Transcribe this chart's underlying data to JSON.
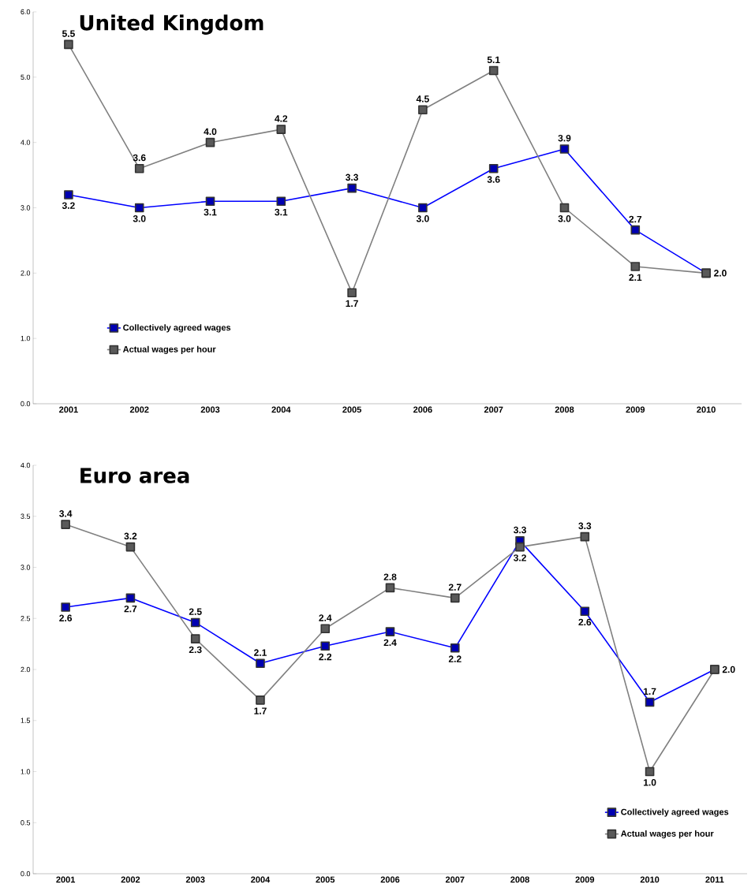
{
  "chart_data": [
    {
      "type": "line",
      "title": "United Kingdom",
      "categories": [
        "2001",
        "2002",
        "2003",
        "2004",
        "2005",
        "2006",
        "2007",
        "2008",
        "2009",
        "2010"
      ],
      "series": [
        {
          "name": "Collectively agreed wages",
          "color": "#0000ff",
          "values": [
            3.2,
            3.0,
            3.1,
            3.1,
            3.3,
            3.0,
            3.6,
            3.9,
            2.66,
            2.0
          ],
          "value_labels": [
            "3.2",
            "3.0",
            "3.1",
            "3.1",
            "3.3",
            "3.0",
            "3.6",
            "3.9",
            "2.7",
            null
          ]
        },
        {
          "name": "Actual wages per hour",
          "color": "#808080",
          "values": [
            5.5,
            3.6,
            4.0,
            4.2,
            1.7,
            4.5,
            5.1,
            3.0,
            2.1,
            2.0
          ],
          "value_labels": [
            "5.5",
            "3.6",
            "4.0",
            "4.2",
            "1.7",
            "4.5",
            "5.1",
            "3.0",
            "2.1",
            "2.0"
          ]
        }
      ],
      "ylim": [
        0,
        6
      ],
      "yticks": [
        {
          "value": 0,
          "label": "0.0"
        },
        {
          "value": 1,
          "label": "1.0"
        },
        {
          "value": 2,
          "label": "2.0"
        },
        {
          "value": 3,
          "label": "3.0"
        },
        {
          "value": 4,
          "label": "4.0"
        },
        {
          "value": 5,
          "label": "5.0"
        },
        {
          "value": 6,
          "label": "6.0"
        }
      ],
      "marker": "square",
      "legend": "bottom left"
    },
    {
      "type": "line",
      "title": "Euro area",
      "categories": [
        "2001",
        "2002",
        "2003",
        "2004",
        "2005",
        "2006",
        "2007",
        "2008",
        "2009",
        "2010",
        "2011"
      ],
      "series": [
        {
          "name": "Collectively agreed wages",
          "color": "#0000ff",
          "values": [
            2.61,
            2.7,
            2.46,
            2.06,
            2.23,
            2.37,
            2.21,
            3.26,
            2.57,
            1.68,
            2.0
          ],
          "value_labels": [
            "2.6",
            "2.7",
            "2.5",
            "2.1",
            "2.2",
            "2.4",
            "2.2",
            "3.3",
            "2.6",
            "1.7",
            null
          ]
        },
        {
          "name": "Actual wages per hour",
          "color": "#808080",
          "values": [
            3.42,
            3.2,
            2.3,
            1.7,
            2.4,
            2.8,
            2.7,
            3.2,
            3.3,
            1.0,
            2.0
          ],
          "value_labels": [
            "3.4",
            "3.2",
            "2.3",
            "1.7",
            "2.4",
            "2.8",
            "2.7",
            "3.2",
            "3.3",
            "1.0",
            "2.0"
          ]
        }
      ],
      "ylim": [
        0,
        4
      ],
      "yticks": [
        {
          "value": 0,
          "label": "0.0"
        },
        {
          "value": 0.5,
          "label": "0.5"
        },
        {
          "value": 1,
          "label": "1.0"
        },
        {
          "value": 1.5,
          "label": "1.5"
        },
        {
          "value": 2,
          "label": "2.0"
        },
        {
          "value": 2.5,
          "label": "2.5"
        },
        {
          "value": 3,
          "label": "3.0"
        },
        {
          "value": 3.5,
          "label": "3.5"
        },
        {
          "value": 4,
          "label": "4.0"
        }
      ],
      "marker": "square",
      "legend": "bottom right"
    }
  ]
}
